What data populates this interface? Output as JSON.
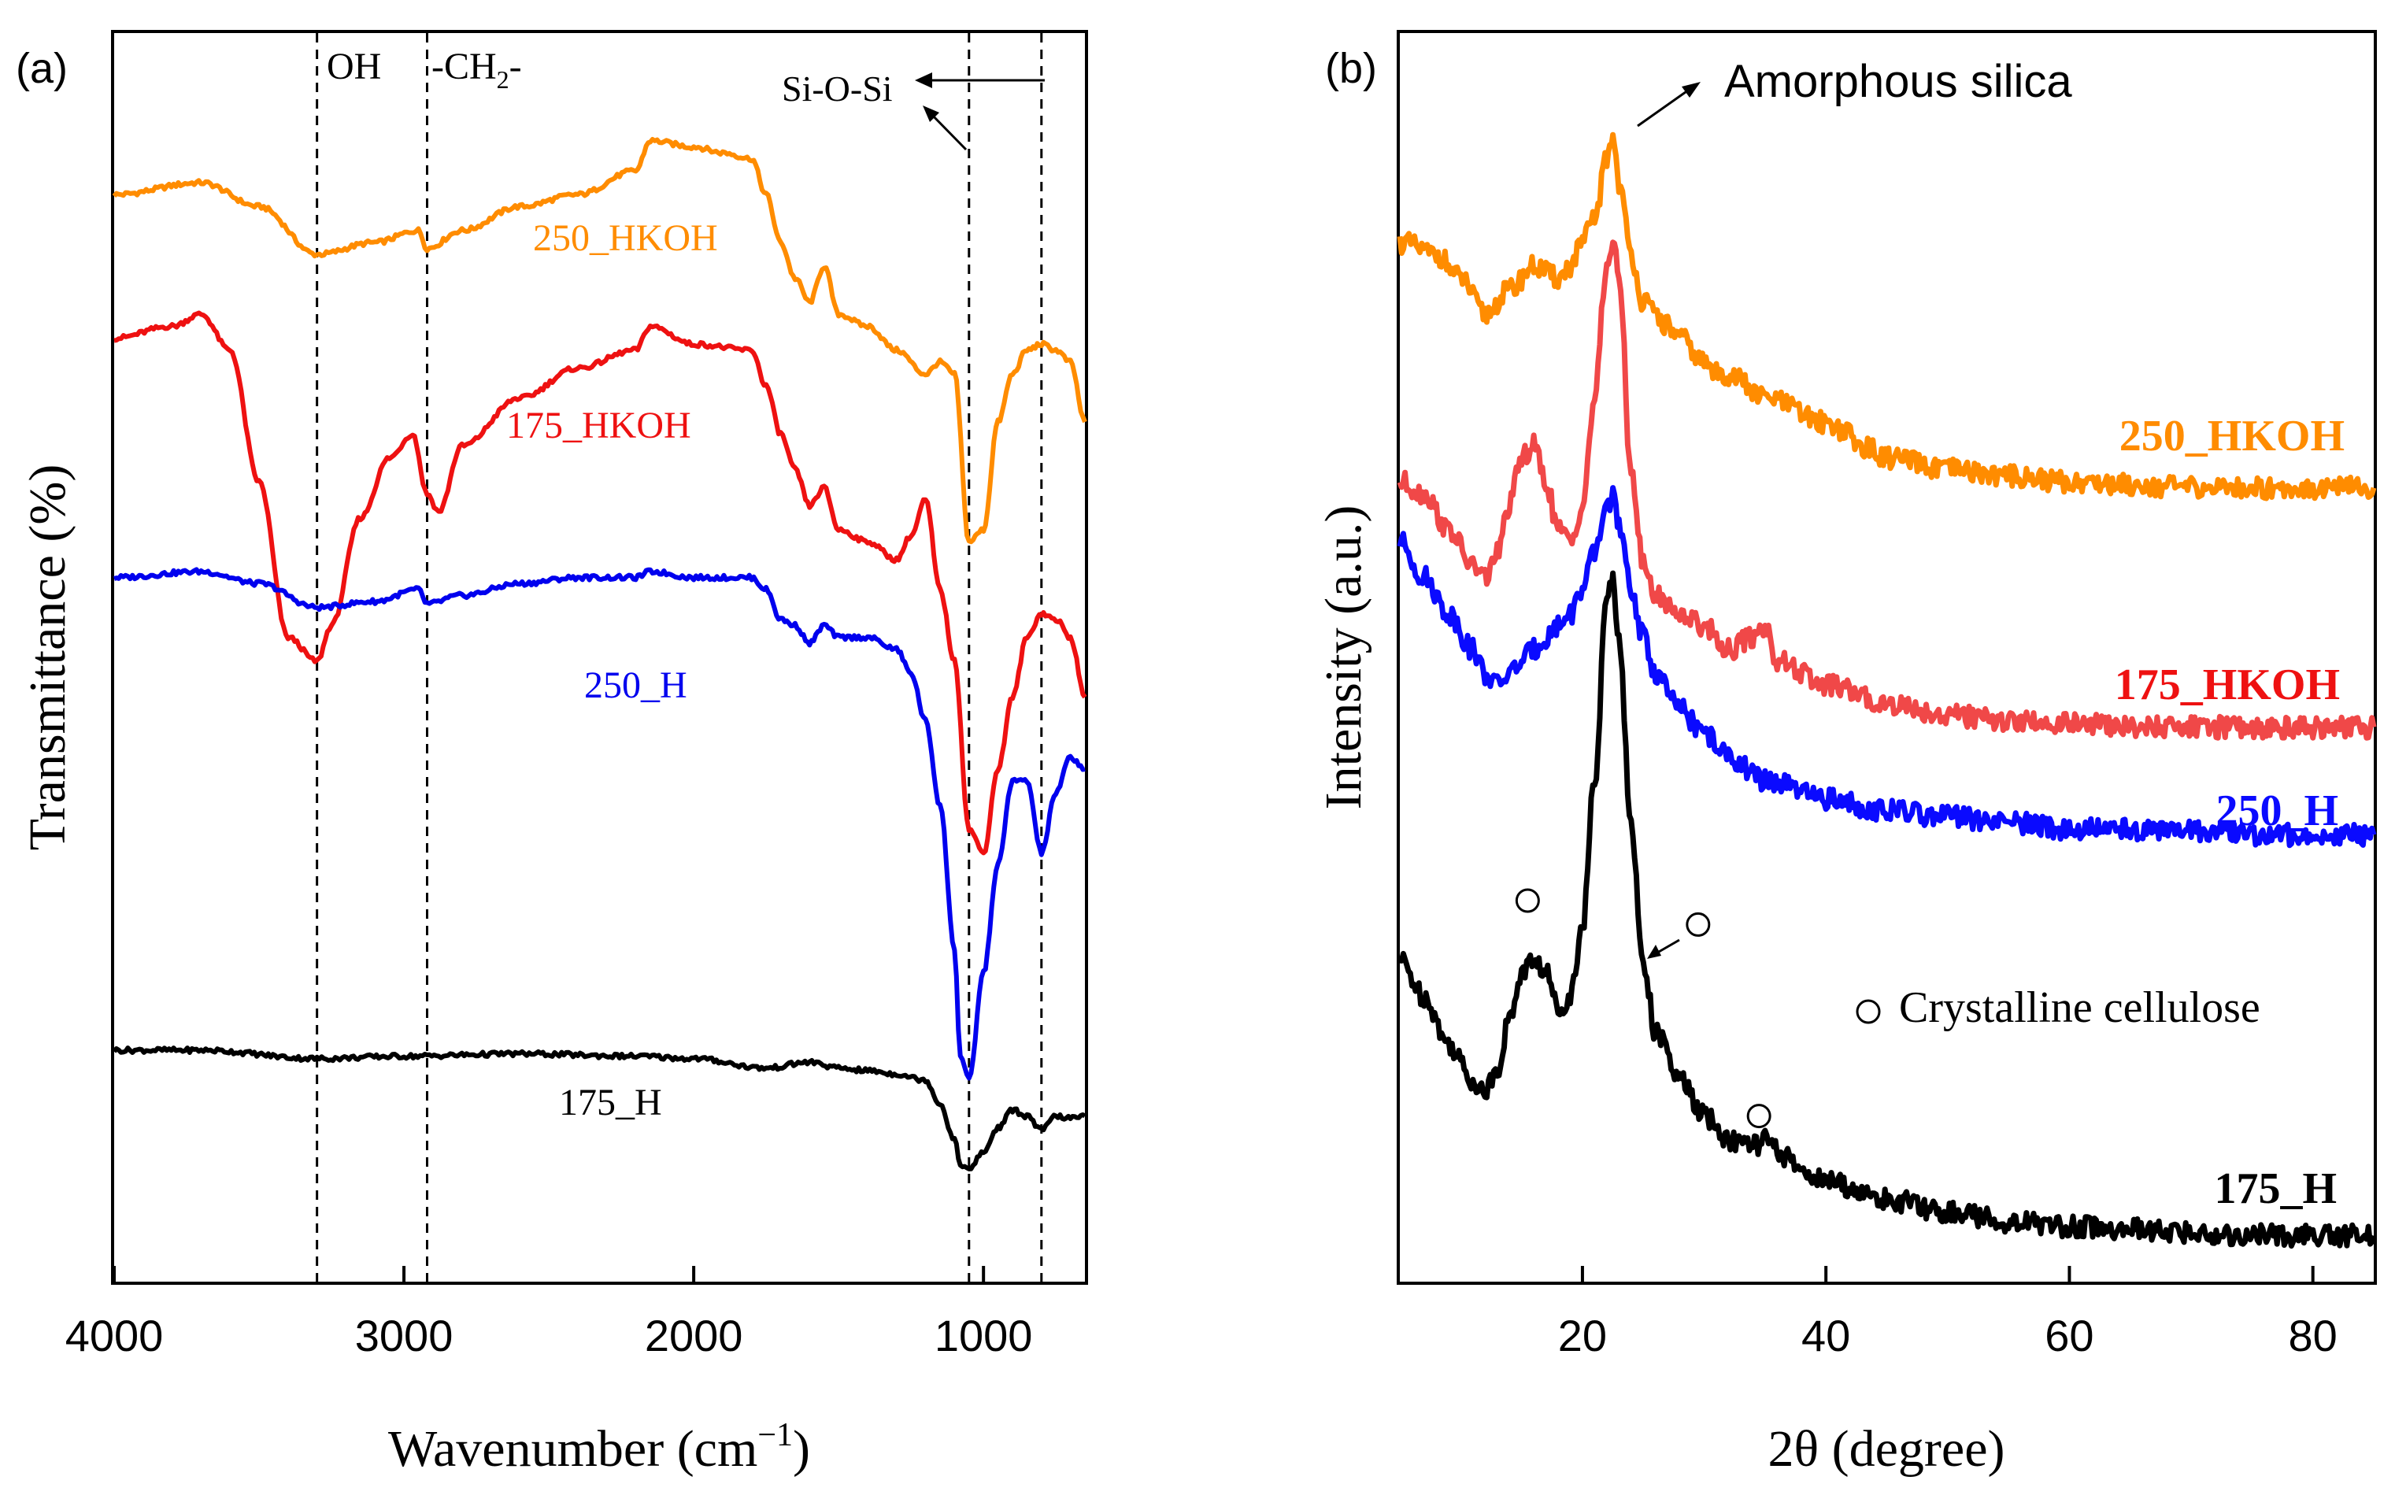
{
  "chart_data": [
    {
      "panel": "(a)",
      "type": "line",
      "xlabel": "Wavenumber (cm",
      "xlabel_sup": "−1",
      "xlabel_close": ")",
      "ylabel": "Transmittance (%)",
      "xlim": [
        4000,
        650
      ],
      "xticks": [
        4000,
        3000,
        2000,
        1000
      ],
      "xtick_labels": [
        "4000",
        "3000",
        "2000",
        "1000"
      ],
      "reference_lines": [
        3300,
        2920,
        1050,
        800
      ],
      "annotations": {
        "oh": "OH",
        "ch2": "-CH",
        "ch2_sub": "2",
        "ch2_end": "-",
        "sio": "Si-O-Si"
      },
      "series": [
        {
          "name": "250_HKOH",
          "color": "#ff8c00",
          "x": [
            4000,
            3700,
            3500,
            3300,
            3100,
            2950,
            2920,
            2800,
            2600,
            2400,
            2200,
            2150,
            2000,
            1900,
            1800,
            1750,
            1700,
            1650,
            1600,
            1550,
            1500,
            1400,
            1300,
            1200,
            1150,
            1100,
            1050,
            1000,
            950,
            900,
            850,
            800,
            750,
            700,
            650
          ],
          "y": [
            0.89,
            0.9,
            0.88,
            0.84,
            0.85,
            0.86,
            0.845,
            0.86,
            0.88,
            0.89,
            0.91,
            0.935,
            0.93,
            0.925,
            0.92,
            0.89,
            0.85,
            0.82,
            0.8,
            0.83,
            0.79,
            0.78,
            0.76,
            0.74,
            0.75,
            0.74,
            0.6,
            0.61,
            0.7,
            0.74,
            0.76,
            0.765,
            0.76,
            0.75,
            0.7
          ]
        },
        {
          "name": "175_HKOH",
          "color": "#ee1111",
          "x": [
            4000,
            3800,
            3700,
            3600,
            3500,
            3400,
            3300,
            3250,
            3150,
            3050,
            2970,
            2920,
            2880,
            2800,
            2600,
            2400,
            2200,
            2150,
            2000,
            1800,
            1750,
            1700,
            1650,
            1600,
            1550,
            1500,
            1400,
            1300,
            1250,
            1200,
            1150,
            1100,
            1050,
            1000,
            950,
            900,
            850,
            800,
            750,
            700,
            650
          ],
          "y": [
            0.77,
            0.78,
            0.79,
            0.76,
            0.65,
            0.52,
            0.5,
            0.53,
            0.62,
            0.67,
            0.69,
            0.64,
            0.625,
            0.68,
            0.72,
            0.745,
            0.76,
            0.78,
            0.765,
            0.76,
            0.73,
            0.69,
            0.66,
            0.63,
            0.645,
            0.61,
            0.6,
            0.585,
            0.605,
            0.635,
            0.56,
            0.5,
            0.36,
            0.34,
            0.41,
            0.47,
            0.52,
            0.54,
            0.535,
            0.52,
            0.47
          ]
        },
        {
          "name": "250_H",
          "color": "#0000ee",
          "x": [
            4000,
            3700,
            3500,
            3300,
            3100,
            2950,
            2920,
            2800,
            2600,
            2400,
            2200,
            2150,
            2000,
            1800,
            1750,
            1700,
            1650,
            1600,
            1550,
            1500,
            1400,
            1300,
            1250,
            1200,
            1150,
            1100,
            1080,
            1050,
            1000,
            950,
            900,
            850,
            800,
            750,
            700,
            650
          ],
          "y": [
            0.57,
            0.575,
            0.565,
            0.545,
            0.55,
            0.56,
            0.548,
            0.555,
            0.565,
            0.57,
            0.57,
            0.575,
            0.57,
            0.57,
            0.56,
            0.535,
            0.53,
            0.515,
            0.53,
            0.52,
            0.52,
            0.51,
            0.49,
            0.45,
            0.38,
            0.26,
            0.17,
            0.15,
            0.24,
            0.33,
            0.4,
            0.4,
            0.34,
            0.39,
            0.42,
            0.41
          ]
        },
        {
          "name": "175_H",
          "color": "#000000",
          "x": [
            4000,
            3700,
            3300,
            3000,
            2600,
            2200,
            2000,
            1750,
            1600,
            1500,
            1400,
            1300,
            1200,
            1150,
            1100,
            1080,
            1050,
            1000,
            950,
            900,
            850,
            800,
            750,
            700,
            650
          ],
          "y": [
            0.175,
            0.175,
            0.168,
            0.17,
            0.172,
            0.17,
            0.168,
            0.16,
            0.165,
            0.16,
            0.158,
            0.155,
            0.15,
            0.13,
            0.1,
            0.08,
            0.075,
            0.09,
            0.11,
            0.125,
            0.12,
            0.108,
            0.12,
            0.118,
            0.12
          ]
        }
      ]
    },
    {
      "panel": "(b)",
      "type": "line",
      "xlabel": "2θ (degree)",
      "ylabel": "Intensity (a.u.)",
      "xlim": [
        5,
        85
      ],
      "xticks": [
        20,
        40,
        60,
        80
      ],
      "xtick_labels": [
        "20",
        "40",
        "60",
        "80"
      ],
      "annotations": {
        "amorphous": "Amorphous silica",
        "legend_crystalline": "Crystalline cellulose"
      },
      "crystalline_markers": [
        {
          "x": 15.5,
          "y": 0.3
        },
        {
          "x": 29.5,
          "y": 0.28
        },
        {
          "x": 34.5,
          "y": 0.12
        }
      ],
      "series": [
        {
          "name": "250_HKOH",
          "color": "#ff8c00",
          "x": [
            5,
            8,
            10,
            12,
            14,
            16,
            18,
            19,
            20,
            21,
            22,
            22.5,
            23,
            24,
            25,
            26,
            27,
            28,
            30,
            31,
            32,
            35,
            40,
            42,
            42.5,
            43,
            45,
            50,
            55,
            60,
            65,
            70,
            75,
            80,
            85
          ],
          "y": [
            0.85,
            0.84,
            0.82,
            0.79,
            0.81,
            0.83,
            0.82,
            0.83,
            0.85,
            0.87,
            0.92,
            0.94,
            0.9,
            0.84,
            0.8,
            0.79,
            0.78,
            0.77,
            0.75,
            0.74,
            0.74,
            0.72,
            0.7,
            0.69,
            0.68,
            0.68,
            0.67,
            0.66,
            0.655,
            0.65,
            0.648,
            0.645,
            0.645,
            0.645,
            0.645
          ]
        },
        {
          "name": "175_HKOH",
          "color": "#f04848",
          "x": [
            5,
            7,
            9,
            11,
            12,
            13,
            14,
            15,
            16,
            17,
            18,
            19,
            20,
            21,
            22,
            22.5,
            23,
            24,
            25,
            26,
            28,
            30,
            32,
            34,
            35,
            36,
            40,
            45,
            50,
            55,
            60,
            65,
            70,
            75,
            80,
            85
          ],
          "y": [
            0.65,
            0.64,
            0.61,
            0.58,
            0.57,
            0.59,
            0.63,
            0.67,
            0.68,
            0.65,
            0.61,
            0.6,
            0.63,
            0.72,
            0.83,
            0.85,
            0.82,
            0.66,
            0.58,
            0.555,
            0.54,
            0.53,
            0.51,
            0.52,
            0.53,
            0.5,
            0.48,
            0.465,
            0.455,
            0.45,
            0.448,
            0.445,
            0.445,
            0.445,
            0.445,
            0.445
          ]
        },
        {
          "name": "250_H",
          "color": "#0a0aff",
          "x": [
            5,
            7,
            9,
            11,
            12,
            13,
            14,
            15,
            16,
            17,
            18,
            19,
            20,
            21,
            22,
            22.5,
            23,
            24,
            25,
            26,
            28,
            30,
            32,
            35,
            40,
            45,
            50,
            55,
            60,
            65,
            70,
            75,
            80,
            85
          ],
          "y": [
            0.6,
            0.57,
            0.54,
            0.51,
            0.49,
            0.48,
            0.49,
            0.5,
            0.51,
            0.52,
            0.53,
            0.54,
            0.56,
            0.59,
            0.63,
            0.64,
            0.61,
            0.56,
            0.52,
            0.49,
            0.46,
            0.44,
            0.42,
            0.4,
            0.385,
            0.375,
            0.37,
            0.365,
            0.36,
            0.36,
            0.358,
            0.355,
            0.355,
            0.355
          ]
        },
        {
          "name": "175_H",
          "color": "#000000",
          "x": [
            5,
            7,
            9,
            11,
            12,
            13,
            14,
            15,
            16,
            17,
            18,
            19,
            20,
            21,
            22,
            22.5,
            23,
            24,
            25,
            26,
            28,
            30,
            32,
            34,
            35,
            36,
            38,
            40,
            45,
            50,
            55,
            60,
            65,
            70,
            75,
            80,
            85
          ],
          "y": [
            0.25,
            0.22,
            0.18,
            0.15,
            0.14,
            0.16,
            0.2,
            0.24,
            0.25,
            0.24,
            0.21,
            0.22,
            0.28,
            0.4,
            0.55,
            0.57,
            0.52,
            0.36,
            0.25,
            0.19,
            0.15,
            0.12,
            0.1,
            0.095,
            0.1,
            0.09,
            0.075,
            0.065,
            0.05,
            0.04,
            0.032,
            0.028,
            0.025,
            0.022,
            0.02,
            0.02,
            0.02
          ]
        }
      ]
    }
  ]
}
